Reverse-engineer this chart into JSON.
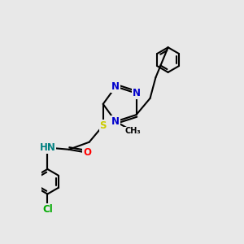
{
  "bg_color": "#e8e8e8",
  "bond_color": "#000000",
  "bond_lw": 1.5,
  "dbo": 0.018,
  "atom_colors": {
    "N": "#0000cc",
    "S": "#cccc00",
    "O": "#ff0000",
    "Cl": "#00aa00",
    "NH": "#008080",
    "C": "#000000"
  },
  "font_size": 8.5,
  "fig_bg": "#e8e8e8"
}
